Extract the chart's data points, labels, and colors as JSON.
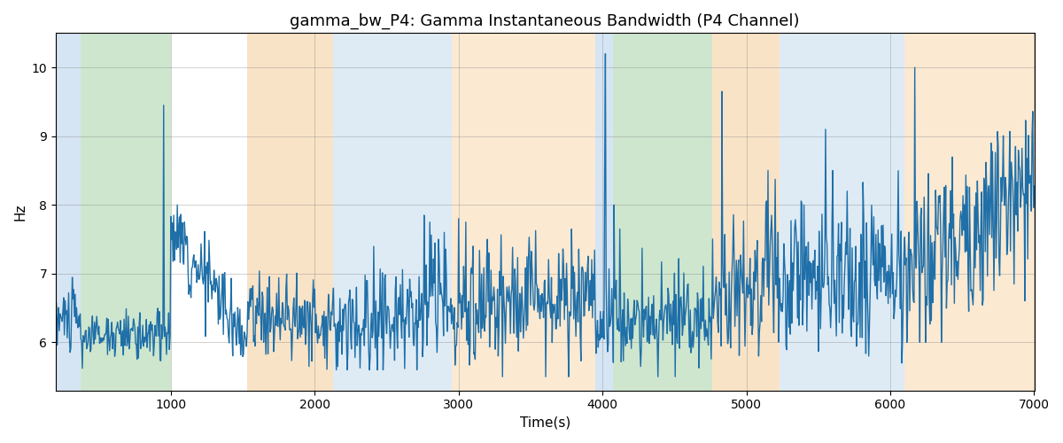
{
  "title": "gamma_bw_P4: Gamma Instantaneous Bandwidth (P4 Channel)",
  "xlabel": "Time(s)",
  "ylabel": "Hz",
  "xlim": [
    200,
    7000
  ],
  "ylim": [
    5.3,
    10.5
  ],
  "yticks": [
    6,
    7,
    8,
    9,
    10
  ],
  "xticks": [
    1000,
    2000,
    3000,
    4000,
    5000,
    6000,
    7000
  ],
  "line_color": "#1f6fa8",
  "line_width": 1.0,
  "bg_color": "#ffffff",
  "title_fontsize": 13,
  "label_fontsize": 11,
  "bands": [
    {
      "xmin": 200,
      "xmax": 370,
      "color": "#aecde8",
      "alpha": 0.5
    },
    {
      "xmin": 370,
      "xmax": 1000,
      "color": "#9ecf9e",
      "alpha": 0.5
    },
    {
      "xmin": 1530,
      "xmax": 2130,
      "color": "#f5c890",
      "alpha": 0.5
    },
    {
      "xmin": 2130,
      "xmax": 2950,
      "color": "#aecde8",
      "alpha": 0.4
    },
    {
      "xmin": 2950,
      "xmax": 3950,
      "color": "#f5c890",
      "alpha": 0.4
    },
    {
      "xmin": 3950,
      "xmax": 4070,
      "color": "#aecde8",
      "alpha": 0.5
    },
    {
      "xmin": 4070,
      "xmax": 4760,
      "color": "#9ecf9e",
      "alpha": 0.5
    },
    {
      "xmin": 4760,
      "xmax": 5230,
      "color": "#f5c890",
      "alpha": 0.5
    },
    {
      "xmin": 5230,
      "xmax": 6100,
      "color": "#aecde8",
      "alpha": 0.4
    },
    {
      "xmin": 6100,
      "xmax": 7100,
      "color": "#f5c890",
      "alpha": 0.4
    }
  ],
  "seed": 42
}
